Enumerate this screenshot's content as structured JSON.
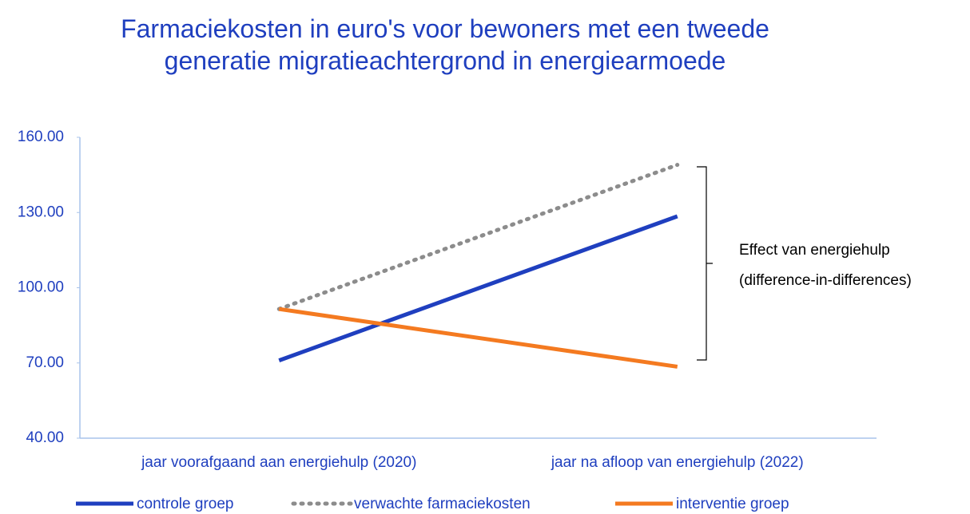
{
  "chart_data": {
    "type": "line",
    "title": "Farmaciekosten in euro's voor bewoners met een tweede generatie migratieachtergrond in energiearmoede",
    "categories": [
      "jaar voorafgaand aan energiehulp (2020)",
      "jaar na afloop van energiehulp (2022)"
    ],
    "series": [
      {
        "name": "controle groep",
        "color": "#1f3fbf",
        "style": "solid",
        "values": [
          71,
          128.5
        ]
      },
      {
        "name": "verwachte farmaciekosten",
        "color": "#8c8c8c",
        "style": "dotted",
        "values": [
          91.5,
          149
        ]
      },
      {
        "name": "interventie groep",
        "color": "#f47a20",
        "style": "solid",
        "values": [
          91.5,
          68.5
        ]
      }
    ],
    "ylim": [
      40,
      160
    ],
    "yticks": [
      {
        "value": 40,
        "label": "40.00"
      },
      {
        "value": 70,
        "label": "70.00"
      },
      {
        "value": 100,
        "label": "100.00"
      },
      {
        "value": 130,
        "label": "130.00"
      },
      {
        "value": 160,
        "label": "160.00"
      }
    ],
    "annotation": [
      "Effect van energiehulp",
      "(difference-in-differences)"
    ],
    "legend": "bottom"
  }
}
